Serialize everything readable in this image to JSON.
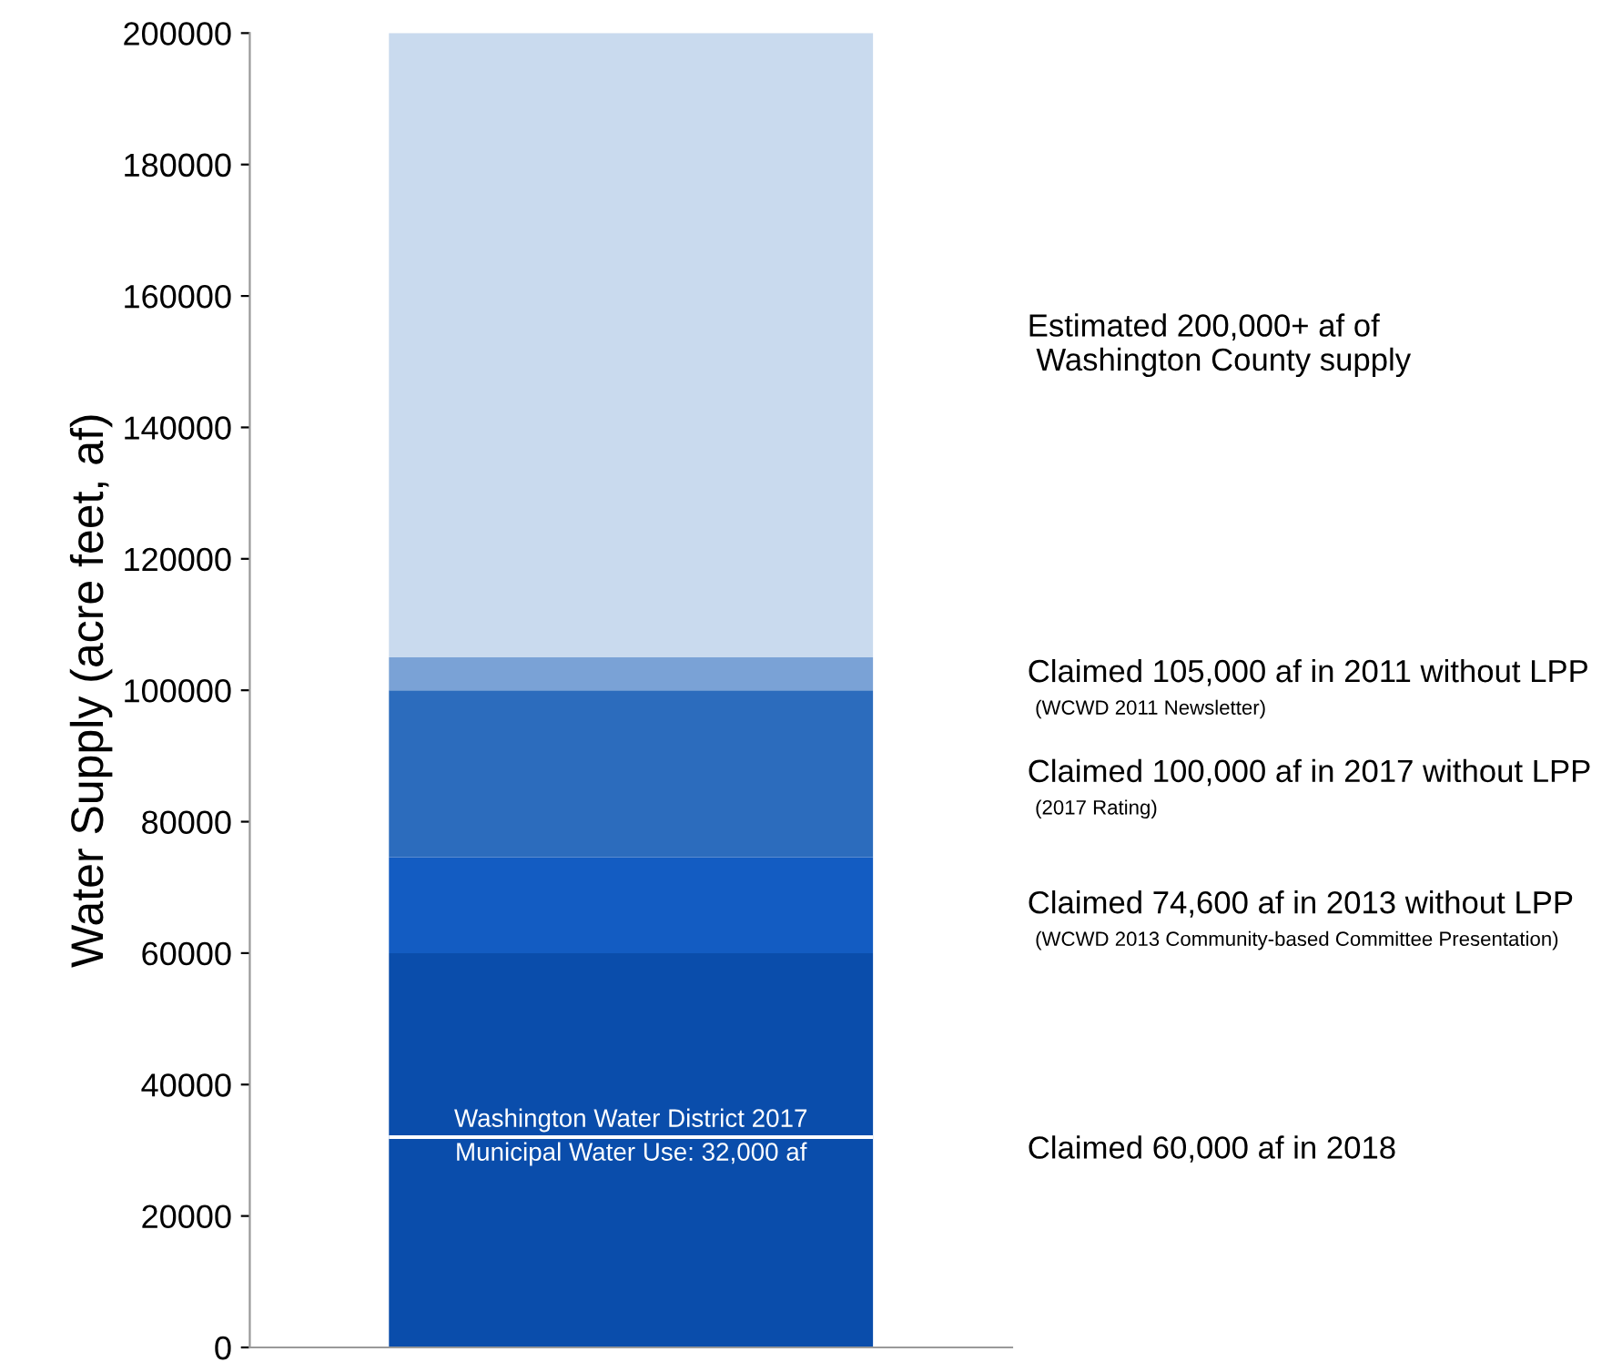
{
  "chart_data": {
    "type": "bar",
    "stacked": true,
    "categories": [
      null
    ],
    "ylabel": "Water Supply (acre feet, af)",
    "series": [
      {
        "name": "Claimed 60,000 af in 2018",
        "color": "#0a4dab",
        "values": [
          60000
        ]
      },
      {
        "name": "Claimed 74,600 af in 2013 without LPP",
        "color": "#135cc2",
        "values": [
          14600
        ]
      },
      {
        "name": "Claimed 100,000 af in 2017 without LPP",
        "color": "#2c6cbd",
        "values": [
          25400
        ]
      },
      {
        "name": "Claimed 105,000 af in 2011 without LPP",
        "color": "#7aa2d6",
        "values": [
          5000
        ]
      },
      {
        "name": "Estimated 200,000+ af of\n Washington County supply",
        "color": "#c9daee",
        "values": [
          95000
        ]
      }
    ],
    "annotations": [
      "(WCWD 2013 Community-based Committee Presentation)",
      "(2017 Rating)",
      "(WCWD 2011 Newsletter)"
    ],
    "ref_lines": [
      {
        "axis": "y",
        "value": 32000,
        "label": "Washington Water District 2017\nMunicipal Water Use: 32,000 af",
        "color": "#ffffff"
      }
    ],
    "ylim": [
      0,
      200000
    ],
    "yticks": [
      0,
      20000,
      40000,
      60000,
      80000,
      100000,
      120000,
      140000,
      160000,
      180000,
      200000
    ],
    "grid": false,
    "legend": false
  }
}
